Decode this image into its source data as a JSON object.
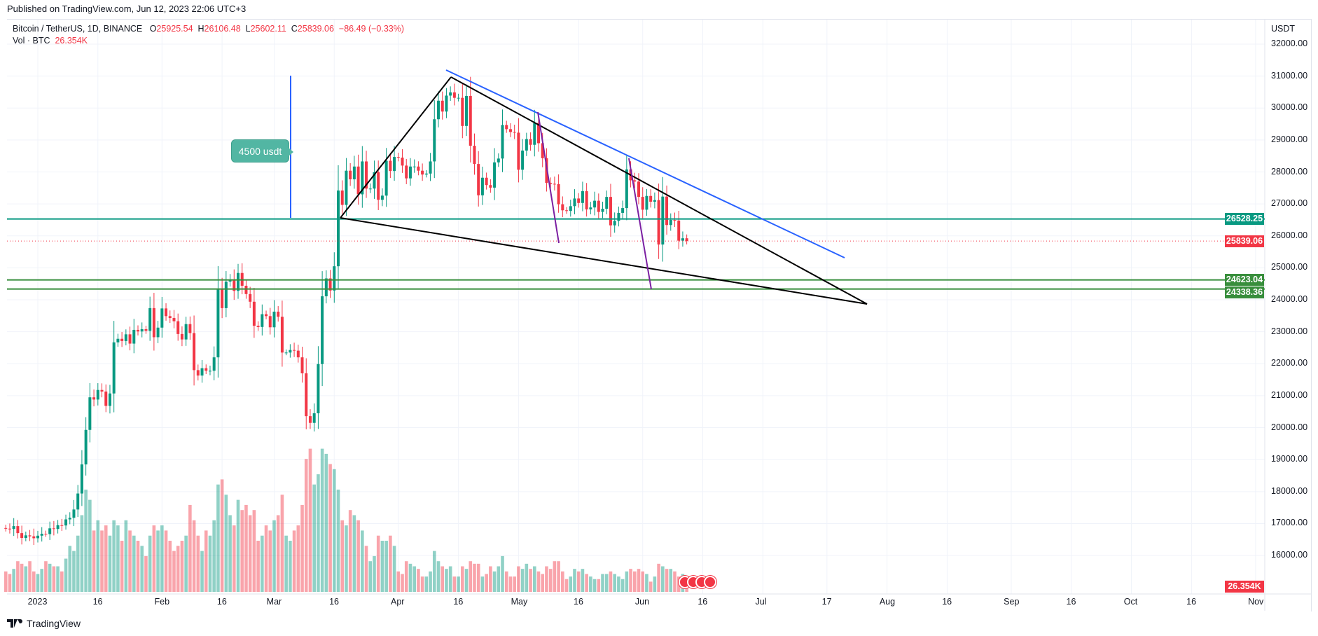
{
  "published": "Published on TradingView.com, Jun 12, 2023 22:06 UTC+3",
  "legend": {
    "symbol": "Bitcoin / TetherUS, 1D, BINANCE",
    "o_label": "O",
    "o": "25925.54",
    "h_label": "H",
    "h": "26106.48",
    "l_label": "L",
    "l": "25602.11",
    "c_label": "C",
    "c": "25839.06",
    "change": "−86.49 (−0.33%)"
  },
  "volume_legend": {
    "label": "Vol · BTC",
    "value": "26.354K"
  },
  "currency": "USDT",
  "note_label": "4500 usdt",
  "footer_logo": "TradingView",
  "colors": {
    "up": "#089981",
    "down": "#f23645",
    "resistance": "#089981",
    "support": "#388e3c",
    "trend_blue": "#2962ff",
    "trend_black": "#000000",
    "purple": "#7b1fa2"
  },
  "chart_data": {
    "type": "candlestick",
    "interval": "1D",
    "start_date": "2022-12-24",
    "ylim": [
      16000,
      32000
    ],
    "y_ticks": [
      "32000.00",
      "31000.00",
      "30000.00",
      "29000.00",
      "28000.00",
      "27000.00",
      "26000.00",
      "25000.00",
      "24000.00",
      "23000.00",
      "22000.00",
      "21000.00",
      "20000.00",
      "19000.00",
      "18000.00",
      "17000.00",
      "16000.00"
    ],
    "x_ticks": [
      {
        "label": "2023",
        "date": "2023-01-01"
      },
      {
        "label": "16",
        "date": "2023-01-16"
      },
      {
        "label": "Feb",
        "date": "2023-02-01"
      },
      {
        "label": "16",
        "date": "2023-02-16"
      },
      {
        "label": "Mar",
        "date": "2023-03-01"
      },
      {
        "label": "16",
        "date": "2023-03-16"
      },
      {
        "label": "Apr",
        "date": "2023-04-01"
      },
      {
        "label": "16",
        "date": "2023-04-16"
      },
      {
        "label": "May",
        "date": "2023-05-01"
      },
      {
        "label": "16",
        "date": "2023-05-16"
      },
      {
        "label": "Jun",
        "date": "2023-06-01"
      },
      {
        "label": "16",
        "date": "2023-06-16"
      },
      {
        "label": "Jul",
        "date": "2023-07-01"
      },
      {
        "label": "17",
        "date": "2023-07-17"
      },
      {
        "label": "Aug",
        "date": "2023-08-01"
      },
      {
        "label": "16",
        "date": "2023-08-16"
      },
      {
        "label": "Sep",
        "date": "2023-09-01"
      },
      {
        "label": "16",
        "date": "2023-09-16"
      },
      {
        "label": "Oct",
        "date": "2023-10-01"
      },
      {
        "label": "16",
        "date": "2023-10-16"
      },
      {
        "label": "Nov",
        "date": "2023-11-01"
      }
    ],
    "close": [
      16840,
      16830,
      16920,
      16700,
      16550,
      16630,
      16600,
      16540,
      16620,
      16680,
      16670,
      16850,
      16830,
      16950,
      16940,
      17130,
      17180,
      17440,
      17940,
      18850,
      19930,
      20950,
      20880,
      21180,
      21130,
      20680,
      21070,
      22670,
      22780,
      22710,
      22920,
      22630,
      23060,
      23010,
      23080,
      23030,
      23740,
      22830,
      23130,
      23730,
      23490,
      23430,
      23330,
      22930,
      22760,
      23240,
      22960,
      21800,
      21630,
      21860,
      21780,
      21780,
      22200,
      24330,
      23740,
      24570,
      24630,
      24280,
      24840,
      24440,
      24180,
      23940,
      23190,
      23150,
      23550,
      23490,
      23140,
      23630,
      23470,
      22350,
      22350,
      22430,
      22410,
      22200,
      21700,
      20360,
      20150,
      20450,
      21990,
      24110,
      24670,
      24290,
      25050,
      27420,
      26970,
      28040,
      27770,
      28170,
      27300,
      28330,
      27480,
      27480,
      27990,
      27130,
      27260,
      28350,
      28030,
      28470,
      28450,
      28200,
      27800,
      28170,
      28170,
      28040,
      27920,
      27950,
      28330,
      29650,
      30230,
      29890,
      30390,
      30490,
      30320,
      30320,
      29440,
      30380,
      28820,
      28250,
      27270,
      27820,
      27590,
      27510,
      28300,
      28420,
      29470,
      29340,
      29250,
      29230,
      28070,
      28670,
      29030,
      28850,
      29530,
      28900,
      28430,
      27660,
      27630,
      27620,
      26990,
      26800,
      26780,
      26930,
      27170,
      27030,
      27400,
      26830,
      26890,
      27100,
      26750,
      26850,
      27220,
      26330,
      26470,
      26720,
      26870,
      28080,
      27740,
      27700,
      27220,
      26820,
      27250,
      27070,
      27120,
      25730,
      27230,
      26340,
      26500,
      26480,
      25850,
      25925.54,
      25839.06
    ],
    "volume_k": [
      40,
      35,
      45,
      60,
      55,
      50,
      60,
      40,
      35,
      45,
      60,
      55,
      50,
      50,
      40,
      65,
      90,
      80,
      110,
      150,
      200,
      180,
      120,
      140,
      120,
      130,
      110,
      140,
      130,
      100,
      140,
      120,
      110,
      100,
      90,
      70,
      110,
      130,
      120,
      130,
      120,
      100,
      80,
      90,
      100,
      110,
      170,
      140,
      110,
      80,
      120,
      110,
      140,
      210,
      220,
      190,
      150,
      130,
      180,
      160,
      170,
      150,
      160,
      100,
      110,
      130,
      120,
      140,
      150,
      190,
      110,
      100,
      120,
      130,
      170,
      260,
      280,
      210,
      230,
      280,
      270,
      250,
      240,
      200,
      140,
      130,
      160,
      150,
      140,
      120,
      90,
      60,
      70,
      110,
      100,
      100,
      110,
      90,
      40,
      35,
      60,
      55,
      50,
      45,
      30,
      30,
      40,
      80,
      60,
      50,
      45,
      50,
      30,
      30,
      50,
      45,
      60,
      55,
      55,
      30,
      35,
      50,
      40,
      50,
      70,
      40,
      30,
      30,
      50,
      45,
      55,
      45,
      50,
      40,
      35,
      50,
      45,
      60,
      60,
      40,
      25,
      30,
      45,
      40,
      45,
      35,
      30,
      25,
      25,
      35,
      35,
      40,
      35,
      30,
      25,
      40,
      45,
      40,
      45,
      40,
      35,
      20,
      30,
      55,
      50,
      45,
      45,
      40,
      30,
      35,
      26.354
    ],
    "last_volume_label": "26.354K",
    "horizontal_levels": [
      {
        "price": 26528.25,
        "label": "26528.25",
        "kind": "resistance"
      },
      {
        "price": 24623.04,
        "label": "24623.04",
        "kind": "support"
      },
      {
        "price": 24338.36,
        "label": "24338.36",
        "kind": "support"
      }
    ],
    "last_price": {
      "price": 25839.06,
      "label": "25839.06"
    }
  }
}
